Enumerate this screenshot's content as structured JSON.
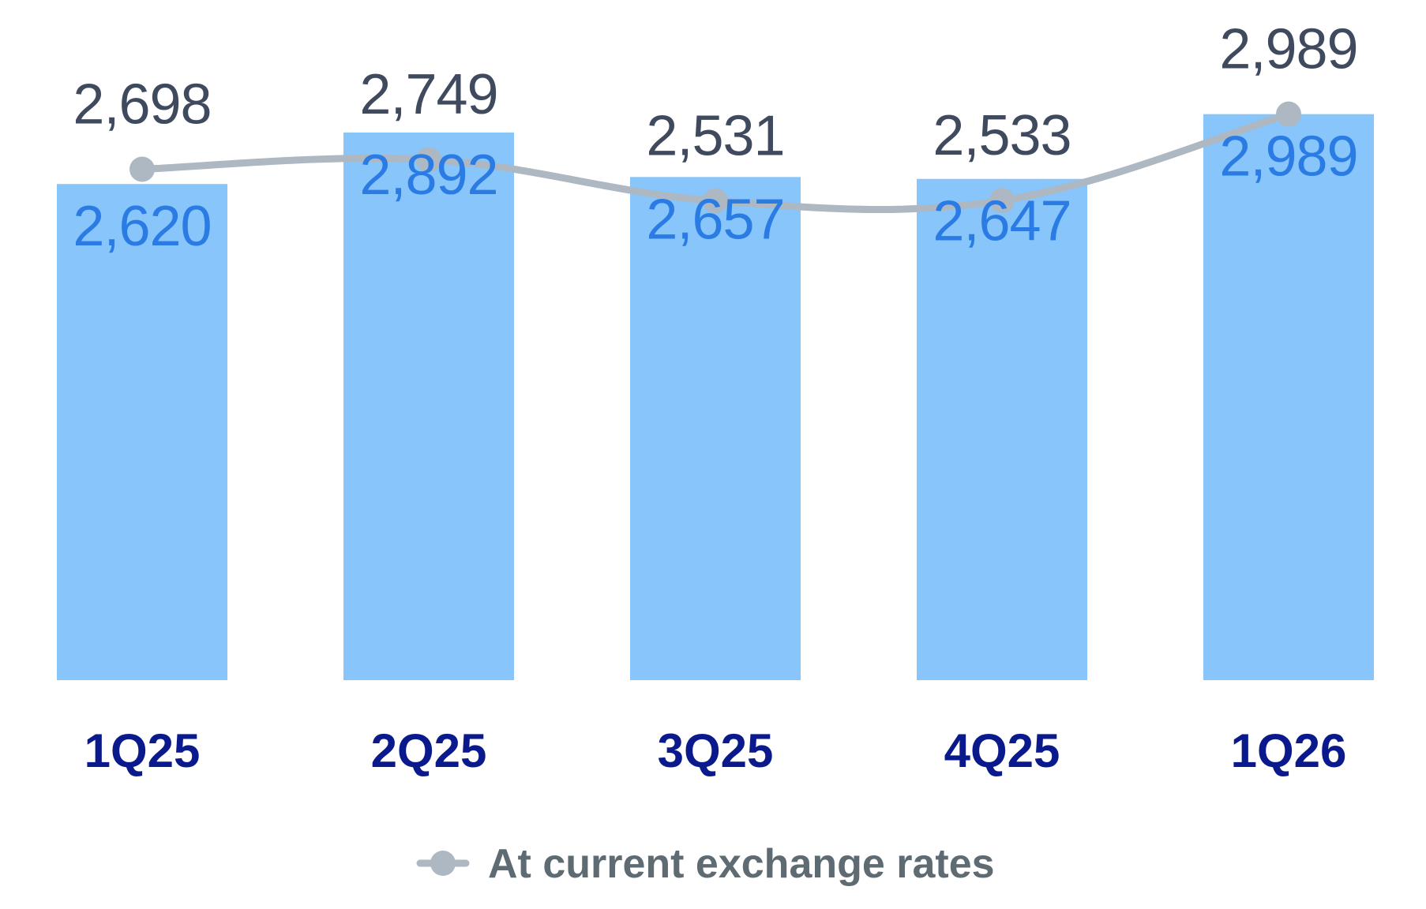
{
  "colors": {
    "bar": "#87c5fb",
    "bar_label": "#2a7be4",
    "line": "#adb8c2",
    "line_label": "#3f4a5e",
    "tick_label": "#0a1a8c",
    "legend_text": "#5e6b73"
  },
  "chart_data": {
    "type": "bar",
    "categories": [
      "1Q25",
      "2Q25",
      "3Q25",
      "4Q25",
      "1Q26"
    ],
    "series": [
      {
        "kind": "bar",
        "values": [
          2620,
          2892,
          2657,
          2647,
          2989
        ],
        "labels": [
          "2,620",
          "2,892",
          "2,657",
          "2,647",
          "2,989"
        ]
      },
      {
        "kind": "line",
        "name": "At current exchange rates",
        "values": [
          2698,
          2749,
          2531,
          2533,
          2989
        ],
        "labels": [
          "2,698",
          "2,749",
          "2,531",
          "2,533",
          "2,989"
        ]
      }
    ],
    "legend": {
      "position": "bottom",
      "entries": [
        "At current exchange rates"
      ]
    },
    "grid": false,
    "ylim": [
      0,
      3050
    ]
  }
}
